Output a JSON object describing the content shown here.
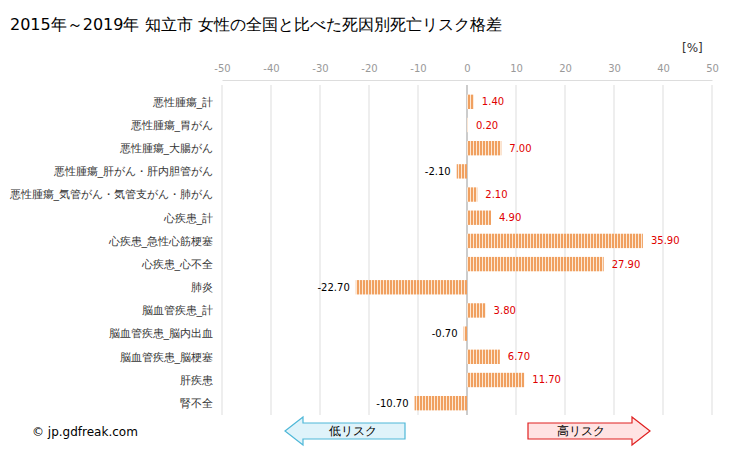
{
  "chart_data": {
    "type": "bar",
    "orientation": "horizontal",
    "title": "2015年～2019年 知立市 女性の全国と比べた死因別死亡リスク格差",
    "xlabel": "[%]",
    "categories": [
      "悪性腫瘍_計",
      "悪性腫瘍_胃がん",
      "悪性腫瘍_大腸がん",
      "悪性腫瘍_肝がん・肝内胆管がん",
      "悪性腫瘍_気管がん・気管支がん・肺がん",
      "心疾患_計",
      "心疾患_急性心筋梗塞",
      "心疾患_心不全",
      "肺炎",
      "脳血管疾患_計",
      "脳血管疾患_脳内出血",
      "脳血管疾患_脳梗塞",
      "肝疾患",
      "腎不全"
    ],
    "values": [
      1.4,
      0.2,
      7.0,
      -2.1,
      2.1,
      4.9,
      35.9,
      27.9,
      -22.7,
      3.8,
      -0.7,
      6.7,
      11.7,
      -10.7
    ],
    "value_labels": [
      "1.40",
      "0.20",
      "7.00",
      "-2.10",
      "2.10",
      "4.90",
      "35.90",
      "27.90",
      "-22.70",
      "3.80",
      "-0.70",
      "6.70",
      "11.70",
      "-10.70"
    ],
    "data_labels": true,
    "color": "#f0a060",
    "xlim": [
      -50,
      50
    ],
    "xticks": [
      -50,
      -40,
      -30,
      -20,
      -10,
      0,
      10,
      20,
      30,
      40,
      50
    ],
    "grid": true,
    "annotations": [
      "低リスク",
      "高リスク",
      "© jp.gdfreak.com"
    ]
  }
}
